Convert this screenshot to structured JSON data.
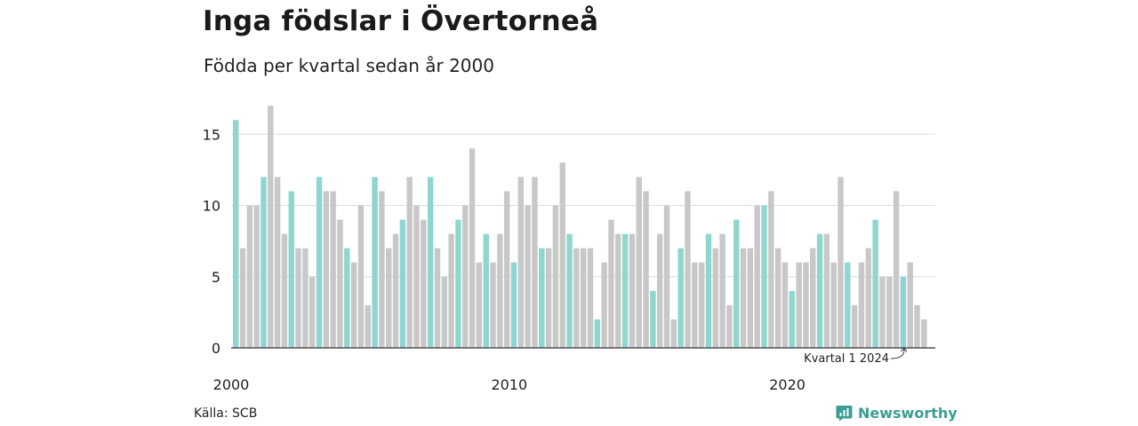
{
  "title": "Inga födslar i Övertorneå",
  "subtitle": "Födda per kvartal sedan år 2000",
  "source": "Källa: SCB",
  "brand": {
    "name": "Newsworthy",
    "icon": "newsworthy-logo-icon",
    "color": "#3a9e93"
  },
  "colors": {
    "highlight": "#8ed6cf",
    "default": "#c8c8c8",
    "grid": "#dddddd",
    "axis": "#333333"
  },
  "chart_data": {
    "type": "bar",
    "title": "Inga födslar i Övertorneå",
    "subtitle": "Födda per kvartal sedan år 2000",
    "start_year": 2000,
    "x_tick_labels": [
      "2000",
      "2010",
      "2020"
    ],
    "y_ticks": [
      0,
      5,
      10,
      15
    ],
    "ylim": [
      0,
      17.5
    ],
    "grid": true,
    "highlight_rule": "quarter 1 of each year highlighted",
    "values": [
      16,
      7,
      10,
      10,
      12,
      17,
      12,
      8,
      11,
      7,
      7,
      5,
      12,
      11,
      11,
      9,
      7,
      6,
      10,
      3,
      12,
      11,
      7,
      8,
      9,
      12,
      10,
      9,
      12,
      7,
      5,
      8,
      9,
      10,
      14,
      6,
      8,
      6,
      8,
      11,
      6,
      12,
      10,
      12,
      7,
      7,
      10,
      13,
      8,
      7,
      7,
      7,
      2,
      6,
      9,
      8,
      8,
      8,
      12,
      11,
      4,
      8,
      10,
      2,
      7,
      11,
      6,
      6,
      8,
      7,
      8,
      3,
      9,
      7,
      7,
      10,
      10,
      11,
      7,
      6,
      4,
      6,
      6,
      7,
      8,
      8,
      6,
      12,
      6,
      3,
      6,
      7,
      9,
      5,
      5,
      11,
      5,
      6,
      3,
      2
    ],
    "annotation": {
      "text": "Kvartal 1 2024",
      "index": 96
    }
  }
}
